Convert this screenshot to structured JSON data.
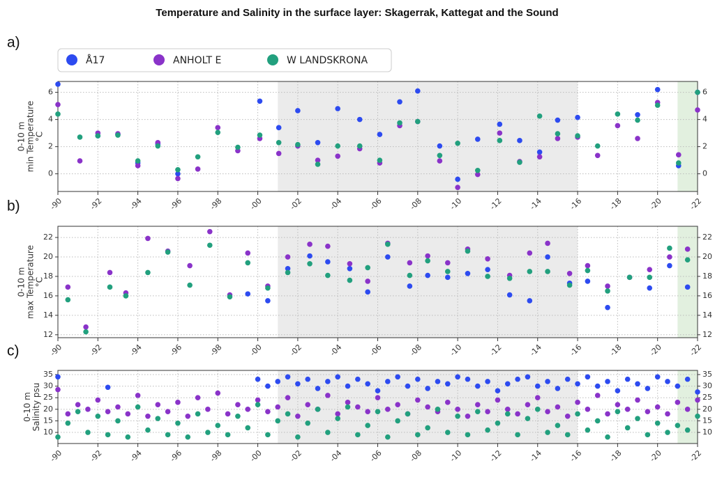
{
  "title": "Temperature and Salinity in the surface layer: Skagerrak, Kattegat and the Sound",
  "chart_data": [
    {
      "type": "scatter",
      "panel_label": "a)",
      "ylabel": [
        "0-10 m",
        "min Temperature",
        "°C"
      ],
      "xlim": [
        1990,
        2022
      ],
      "ylim": [
        -1.3,
        6.8
      ],
      "yticks": [
        0,
        2,
        4,
        6
      ],
      "grid": true,
      "right_ticks": true,
      "xticks": [
        {
          "value": 1990,
          "label": "-90"
        },
        {
          "value": 1992,
          "label": "-92"
        },
        {
          "value": 1994,
          "label": "-94"
        },
        {
          "value": 1996,
          "label": "-96"
        },
        {
          "value": 1998,
          "label": "-98"
        },
        {
          "value": 2000,
          "label": "-00"
        },
        {
          "value": 2002,
          "label": "-02"
        },
        {
          "value": 2004,
          "label": "-04"
        },
        {
          "value": 2006,
          "label": "-06"
        },
        {
          "value": 2008,
          "label": "-08"
        },
        {
          "value": 2010,
          "label": "-10"
        },
        {
          "value": 2012,
          "label": "-12"
        },
        {
          "value": 2014,
          "label": "-14"
        },
        {
          "value": 2016,
          "label": "-16"
        },
        {
          "value": 2018,
          "label": "-18"
        },
        {
          "value": 2020,
          "label": "-20"
        },
        {
          "value": 2022,
          "label": "-22"
        }
      ],
      "shaded": [
        {
          "from": 2001,
          "to": 2016,
          "color": "#ebebeb"
        },
        {
          "from": 2021,
          "to": 2022,
          "color": "#e2f0df"
        }
      ],
      "x": [
        1990.0,
        1991.1,
        1992.0,
        1993.0,
        1994.0,
        1995.0,
        1996.0,
        1997.0,
        1998.0,
        1999.0,
        2000.1,
        2001.05,
        2002.0,
        2003.0,
        2004.0,
        2005.1,
        2006.1,
        2007.1,
        2008.0,
        2009.1,
        2010.0,
        2011.0,
        2012.1,
        2013.1,
        2014.1,
        2015.0,
        2016.0,
        2017.0,
        2018.0,
        2019.0,
        2020.0,
        2021.05,
        2022.0
      ],
      "series": [
        {
          "name": "Å17",
          "color": "#2d4bf0",
          "values": [
            6.6,
            null,
            2.8,
            2.9,
            0.8,
            2.2,
            0.0,
            null,
            null,
            null,
            5.35,
            3.4,
            4.65,
            2.3,
            4.8,
            4.0,
            2.9,
            5.3,
            6.1,
            2.05,
            -0.4,
            2.55,
            3.65,
            2.45,
            1.6,
            3.95,
            4.15,
            null,
            null,
            4.35,
            6.2,
            0.6,
            6.0
          ]
        },
        {
          "name": "ANHOLT E",
          "color": "#8a33c9",
          "values": [
            5.1,
            0.95,
            3.0,
            2.95,
            0.6,
            2.3,
            -0.35,
            0.35,
            3.4,
            1.7,
            2.6,
            1.5,
            2.05,
            1.0,
            1.3,
            1.85,
            0.8,
            3.55,
            3.85,
            0.95,
            -1.0,
            -0.05,
            3.0,
            0.9,
            1.25,
            2.6,
            2.7,
            1.35,
            3.55,
            2.6,
            5.25,
            1.4,
            4.7
          ]
        },
        {
          "name": "W LANDSKRONA",
          "color": "#22a07e",
          "values": [
            4.4,
            2.7,
            2.8,
            2.85,
            0.95,
            2.05,
            0.3,
            1.25,
            3.05,
            1.95,
            2.85,
            2.3,
            2.15,
            0.7,
            2.05,
            2.05,
            1.0,
            3.75,
            3.85,
            1.35,
            2.25,
            0.25,
            2.45,
            0.85,
            4.25,
            2.95,
            2.8,
            2.05,
            4.4,
            3.95,
            5.05,
            0.8,
            6.0
          ]
        }
      ]
    },
    {
      "type": "scatter",
      "panel_label": "b)",
      "ylabel": [
        "0-10 m",
        "max Temperature",
        "°C"
      ],
      "xlim": [
        1990,
        2022
      ],
      "ylim": [
        11.7,
        23.15
      ],
      "yticks": [
        12,
        14,
        16,
        18,
        20,
        22
      ],
      "grid": true,
      "right_ticks": true,
      "xticks": [
        {
          "value": 1990,
          "label": "-90"
        },
        {
          "value": 1992,
          "label": "-92"
        },
        {
          "value": 1994,
          "label": "-94"
        },
        {
          "value": 1996,
          "label": "-96"
        },
        {
          "value": 1998,
          "label": "-98"
        },
        {
          "value": 2000,
          "label": "-00"
        },
        {
          "value": 2002,
          "label": "-02"
        },
        {
          "value": 2004,
          "label": "-04"
        },
        {
          "value": 2006,
          "label": "-06"
        },
        {
          "value": 2008,
          "label": "-08"
        },
        {
          "value": 2010,
          "label": "-10"
        },
        {
          "value": 2012,
          "label": "-12"
        },
        {
          "value": 2014,
          "label": "-14"
        },
        {
          "value": 2016,
          "label": "-16"
        },
        {
          "value": 2018,
          "label": "-18"
        },
        {
          "value": 2020,
          "label": "-20"
        },
        {
          "value": 2022,
          "label": "-22"
        }
      ],
      "shaded": [
        {
          "from": 2001,
          "to": 2016,
          "color": "#ebebeb"
        },
        {
          "from": 2021,
          "to": 2022,
          "color": "#e2f0df"
        }
      ],
      "x": [
        1990.5,
        1991.4,
        1992.6,
        1993.4,
        1994.5,
        1995.5,
        1996.6,
        1997.6,
        1998.6,
        1999.5,
        2000.5,
        2001.5,
        2002.6,
        2003.5,
        2004.6,
        2005.5,
        2006.5,
        2007.6,
        2008.5,
        2009.5,
        2010.5,
        2011.5,
        2012.6,
        2013.6,
        2014.5,
        2015.6,
        2016.5,
        2017.5,
        2018.6,
        2019.6,
        2020.6,
        2021.5
      ],
      "series": [
        {
          "name": "Å17",
          "color": "#2d4bf0",
          "values": [
            null,
            null,
            null,
            null,
            null,
            null,
            null,
            null,
            null,
            16.2,
            15.5,
            18.8,
            20.1,
            19.5,
            18.8,
            16.4,
            20.0,
            17.0,
            18.1,
            17.9,
            18.3,
            18.7,
            16.1,
            15.5,
            20.0,
            17.3,
            17.5,
            14.8,
            null,
            16.8,
            19.1,
            16.9
          ]
        },
        {
          "name": "ANHOLT E",
          "color": "#8a33c9",
          "values": [
            16.9,
            12.8,
            18.4,
            16.3,
            21.9,
            20.6,
            19.1,
            22.6,
            16.1,
            20.4,
            17.0,
            20.0,
            21.3,
            21.1,
            19.3,
            17.5,
            21.4,
            19.4,
            20.1,
            19.4,
            20.8,
            19.8,
            18.1,
            20.4,
            21.4,
            18.3,
            19.1,
            17.0,
            17.9,
            18.7,
            20.0,
            20.8
          ]
        },
        {
          "name": "W LANDSKRONA",
          "color": "#22a07e",
          "values": [
            15.6,
            12.3,
            16.9,
            16.0,
            18.4,
            20.5,
            17.1,
            21.2,
            15.9,
            19.4,
            16.8,
            18.4,
            19.3,
            18.1,
            17.6,
            18.9,
            21.3,
            18.1,
            19.6,
            18.5,
            20.6,
            18.0,
            17.8,
            18.5,
            18.5,
            17.1,
            18.6,
            16.5,
            17.9,
            17.9,
            20.9,
            19.7
          ]
        }
      ]
    },
    {
      "type": "scatter",
      "panel_label": "c)",
      "ylabel": [
        "0-10 m",
        "Salinity psu"
      ],
      "xlim": [
        1990,
        2022
      ],
      "ylim": [
        5.2,
        36.8
      ],
      "yticks": [
        10,
        15,
        20,
        25,
        30,
        35
      ],
      "grid": true,
      "right_ticks": true,
      "xticks": [
        {
          "value": 1990,
          "label": "-90"
        },
        {
          "value": 1992,
          "label": "-92"
        },
        {
          "value": 1994,
          "label": "-94"
        },
        {
          "value": 1996,
          "label": "-96"
        },
        {
          "value": 1998,
          "label": "-98"
        },
        {
          "value": 2000,
          "label": "-00"
        },
        {
          "value": 2002,
          "label": "-02"
        },
        {
          "value": 2004,
          "label": "-04"
        },
        {
          "value": 2006,
          "label": "-06"
        },
        {
          "value": 2008,
          "label": "-08"
        },
        {
          "value": 2010,
          "label": "-10"
        },
        {
          "value": 2012,
          "label": "-12"
        },
        {
          "value": 2014,
          "label": "-14"
        },
        {
          "value": 2016,
          "label": "-16"
        },
        {
          "value": 2018,
          "label": "-18"
        },
        {
          "value": 2020,
          "label": "-20"
        },
        {
          "value": 2022,
          "label": "-22"
        }
      ],
      "shaded": [
        {
          "from": 2001,
          "to": 2016,
          "color": "#ebebeb"
        },
        {
          "from": 2021,
          "to": 2022,
          "color": "#e2f0df"
        }
      ],
      "x": [
        1990,
        1990.5,
        1991,
        1991.5,
        1992,
        1992.5,
        1993,
        1993.5,
        1994,
        1994.5,
        1995,
        1995.5,
        1996,
        1996.5,
        1997,
        1997.5,
        1998,
        1998.5,
        1999,
        1999.5,
        2000,
        2000.5,
        2001,
        2001.5,
        2002,
        2002.5,
        2003,
        2003.5,
        2004,
        2004.5,
        2005,
        2005.5,
        2006,
        2006.5,
        2007,
        2007.5,
        2008,
        2008.5,
        2009,
        2009.5,
        2010,
        2010.5,
        2011,
        2011.5,
        2012,
        2012.5,
        2013,
        2013.5,
        2014,
        2014.5,
        2015,
        2015.5,
        2016,
        2016.5,
        2017,
        2017.5,
        2018,
        2018.5,
        2019,
        2019.5,
        2020,
        2020.5,
        2021,
        2021.5,
        2022
      ],
      "series": [
        {
          "name": "Å17",
          "color": "#2d4bf0",
          "values": [
            34,
            null,
            null,
            null,
            null,
            29.5,
            null,
            null,
            null,
            null,
            null,
            null,
            null,
            null,
            null,
            null,
            null,
            null,
            null,
            null,
            33,
            30,
            32,
            34,
            31,
            33,
            29,
            32,
            34,
            30,
            33,
            31,
            28,
            32,
            34,
            30,
            33,
            29,
            32,
            31,
            34,
            33,
            30,
            32,
            28,
            31,
            33,
            34,
            30,
            32,
            29,
            33,
            31,
            34,
            30,
            32,
            28,
            33,
            31,
            29,
            34,
            32,
            30,
            33,
            27.5
          ]
        },
        {
          "name": "ANHOLT E",
          "color": "#8a33c9",
          "values": [
            28.5,
            18,
            22,
            20,
            24,
            19,
            21,
            18,
            26,
            17,
            22,
            19,
            23,
            17,
            25,
            20,
            27,
            18,
            22,
            20,
            24,
            19,
            21,
            25,
            17,
            22,
            20,
            26,
            18,
            23,
            21,
            19,
            25,
            20,
            22,
            18,
            24,
            21,
            19,
            23,
            20,
            17,
            22,
            19,
            24,
            20,
            18,
            22,
            25,
            19,
            21,
            17,
            23,
            20,
            26,
            18,
            22,
            20,
            24,
            19,
            21,
            18,
            23,
            20,
            24
          ]
        },
        {
          "name": "W LANDSKRONA",
          "color": "#22a07e",
          "values": [
            8,
            14,
            19,
            10,
            17,
            9,
            15,
            8,
            21,
            11,
            16,
            9,
            14,
            8,
            18,
            10,
            13,
            9,
            17,
            12,
            22,
            9,
            15,
            18,
            8,
            14,
            20,
            10,
            16,
            21,
            9,
            13,
            19,
            8,
            15,
            18,
            9,
            12,
            20,
            10,
            17,
            9,
            19,
            11,
            14,
            18,
            9,
            16,
            20,
            10,
            13,
            9,
            18,
            11,
            15,
            8,
            19,
            12,
            16,
            9,
            14,
            10,
            13,
            11,
            17
          ]
        }
      ]
    }
  ]
}
